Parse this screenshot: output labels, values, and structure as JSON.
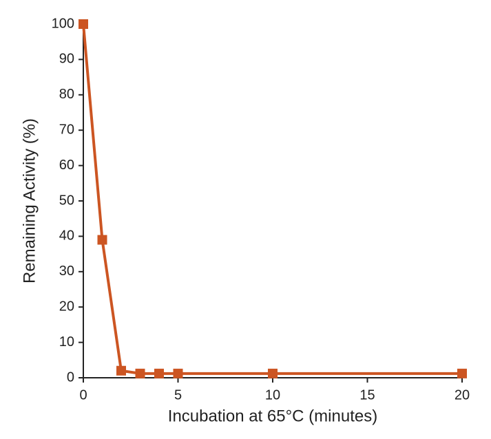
{
  "chart_data": {
    "type": "line",
    "x_label": "Incubation at 65°C (minutes)",
    "y_label": "Remaining Activity (%)",
    "x": [
      0,
      1,
      2,
      3,
      4,
      5,
      10,
      20
    ],
    "series": [
      {
        "color": "#cc5522",
        "values": [
          100,
          39,
          2,
          1.2,
          1.2,
          1.2,
          1.2,
          1.2
        ]
      }
    ],
    "xlim": [
      0,
      20
    ],
    "xticks": [
      0,
      5,
      10,
      15,
      20
    ],
    "ylim": [
      0,
      100
    ],
    "yticks": [
      0,
      10,
      20,
      30,
      40,
      50,
      60,
      70,
      80,
      90,
      100
    ],
    "grid": false
  }
}
